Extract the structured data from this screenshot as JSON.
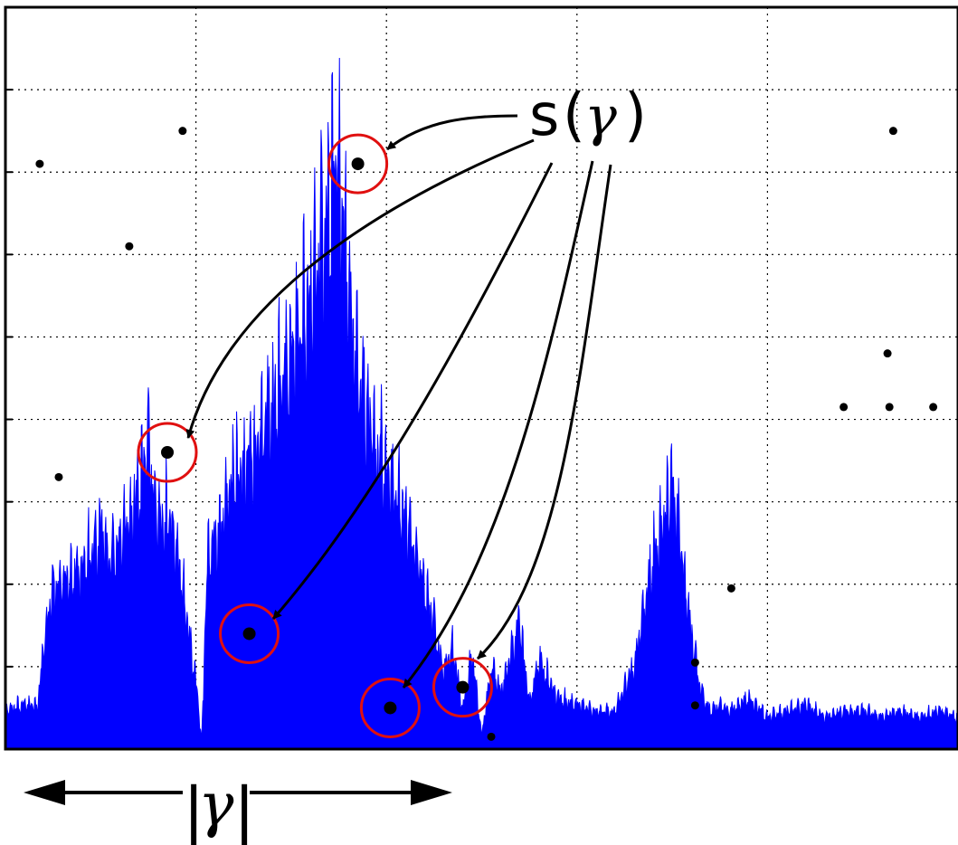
{
  "chart_data": {
    "type": "area",
    "title": "",
    "xlabel": "",
    "ylabel": "",
    "grid": true,
    "xlim": [
      0,
      5
    ],
    "ylim": [
      0,
      9
    ],
    "colors": {
      "spectrum": "#0000ff",
      "circle": "#e01010",
      "point": "#000000",
      "arrow": "#000000",
      "grid": "#000000"
    },
    "spectrum_envelope": {
      "x": [
        0,
        0.1,
        0.17,
        0.2,
        0.25,
        0.35,
        0.45,
        0.5,
        0.55,
        0.6,
        0.65,
        0.7,
        0.75,
        0.8,
        0.85,
        0.9,
        0.95,
        1.0,
        1.03,
        1.06,
        1.1,
        1.2,
        1.3,
        1.4,
        1.5,
        1.6,
        1.7,
        1.75,
        1.8,
        1.82,
        1.85,
        1.9,
        2.0,
        2.1,
        2.2,
        2.3,
        2.35,
        2.4,
        2.45,
        2.5,
        2.55,
        2.6,
        2.7,
        2.75,
        2.8,
        2.9,
        3.0,
        3.1,
        3.2,
        3.3,
        3.35,
        3.4,
        3.45,
        3.5,
        3.53,
        3.56,
        3.6,
        3.65,
        3.7,
        3.75,
        3.8,
        3.85,
        3.9,
        4.0,
        4.1,
        4.2,
        4.3,
        4.4,
        4.5,
        4.6,
        4.7,
        4.8,
        4.9,
        5.0
      ],
      "y": [
        0.6,
        0.7,
        0.7,
        1.6,
        2.5,
        2.7,
        3.0,
        3.5,
        2.9,
        3.2,
        3.6,
        4.1,
        4.8,
        3.5,
        3.6,
        3.2,
        2.1,
        1.1,
        0.1,
        3.0,
        3.2,
        4.3,
        4.6,
        5.4,
        6.1,
        7.0,
        8.5,
        9.2,
        7.4,
        6.6,
        6.0,
        5.2,
        4.4,
        3.6,
        2.6,
        1.2,
        1.6,
        0.6,
        1.5,
        0.2,
        1.3,
        0.9,
        2.0,
        0.7,
        1.4,
        0.8,
        0.7,
        0.6,
        0.6,
        1.3,
        2.2,
        3.0,
        3.5,
        4.1,
        3.6,
        2.8,
        1.8,
        0.9,
        0.6,
        0.7,
        0.6,
        0.7,
        0.8,
        0.5,
        0.6,
        0.7,
        0.5,
        0.6,
        0.6,
        0.5,
        0.6,
        0.5,
        0.6,
        0.5
      ]
    },
    "circled_points": [
      {
        "x": 1.85,
        "y": 7.1
      },
      {
        "x": 0.85,
        "y": 3.6
      },
      {
        "x": 1.28,
        "y": 1.4
      },
      {
        "x": 2.02,
        "y": 0.5
      },
      {
        "x": 2.4,
        "y": 0.75
      }
    ],
    "scatter_points": [
      {
        "x": 0.18,
        "y": 7.1
      },
      {
        "x": 0.93,
        "y": 7.5
      },
      {
        "x": 0.65,
        "y": 6.1
      },
      {
        "x": 0.28,
        "y": 3.3
      },
      {
        "x": 2.55,
        "y": 0.15
      },
      {
        "x": 3.62,
        "y": 1.05
      },
      {
        "x": 3.62,
        "y": 0.53
      },
      {
        "x": 3.81,
        "y": 1.95
      },
      {
        "x": 4.63,
        "y": 4.8
      },
      {
        "x": 4.87,
        "y": 4.15
      },
      {
        "x": 4.64,
        "y": 4.15
      },
      {
        "x": 4.4,
        "y": 4.15
      },
      {
        "x": 4.66,
        "y": 7.5
      }
    ]
  },
  "annotations": {
    "s_label": "s",
    "s_arg": "γ",
    "s_open": "(",
    "s_close": ")",
    "width_label": "γ",
    "width_bar_left": "|",
    "width_bar_right": "|"
  }
}
